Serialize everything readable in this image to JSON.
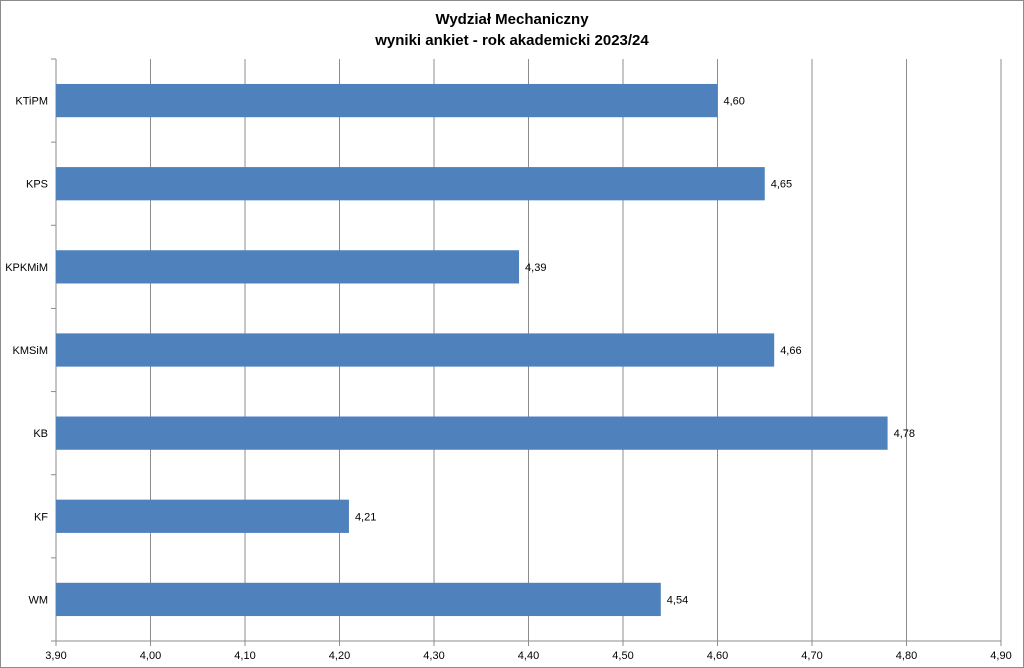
{
  "chart_data": {
    "type": "bar",
    "orientation": "horizontal",
    "title": "Wydział Mechaniczny",
    "subtitle": "wyniki ankiet - rok akademicki 2023/24",
    "categories": [
      "KTiPM",
      "KPS",
      "KPKMiM",
      "KMSiM",
      "KB",
      "KF",
      "WM"
    ],
    "values": [
      4.6,
      4.65,
      4.39,
      4.66,
      4.78,
      4.21,
      4.54
    ],
    "value_labels": [
      "4,60",
      "4,65",
      "4,39",
      "4,66",
      "4,78",
      "4,21",
      "4,54"
    ],
    "xlim": [
      3.9,
      4.9
    ],
    "xticks": [
      3.9,
      4.0,
      4.1,
      4.2,
      4.3,
      4.4,
      4.5,
      4.6,
      4.7,
      4.8,
      4.9
    ],
    "xtick_labels": [
      "3,90",
      "4,00",
      "4,10",
      "4,20",
      "4,30",
      "4,40",
      "4,50",
      "4,60",
      "4,70",
      "4,80",
      "4,90"
    ],
    "grid": "vertical",
    "legend": "none",
    "bar_color": "#4f81bd"
  }
}
